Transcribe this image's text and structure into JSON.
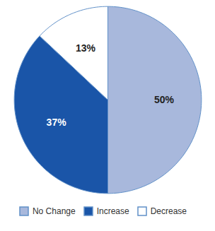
{
  "chart_data": {
    "type": "pie",
    "categories": [
      "No Change",
      "Increase",
      "Decrease"
    ],
    "values": [
      50,
      37,
      13
    ],
    "value_labels": [
      "50%",
      "37%",
      "13%"
    ],
    "colors": [
      "#a8b8dc",
      "#1a55a8",
      "#ffffff"
    ],
    "data_labels": true,
    "legend": "bottom"
  }
}
